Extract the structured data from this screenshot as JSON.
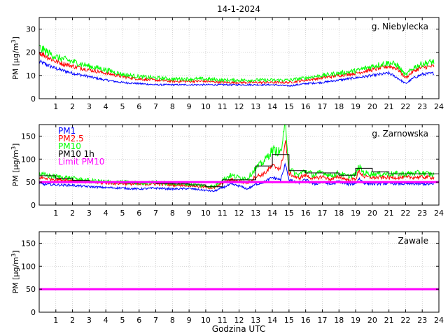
{
  "title": "14-1-2024",
  "xlabel": "Godzina UTC",
  "ylabel_prefix": "PM [μg/m",
  "ylabel_sup": "3",
  "ylabel_suffix": "]",
  "x_ticks": [
    1,
    2,
    3,
    4,
    5,
    6,
    7,
    8,
    9,
    10,
    11,
    12,
    13,
    14,
    15,
    16,
    17,
    18,
    19,
    20,
    21,
    22,
    23,
    24
  ],
  "colors": {
    "PM1": "#0000ff",
    "PM2.5": "#ff0000",
    "PM10": "#00ff00",
    "PM10 1h": "#000000",
    "Limit PM10": "#ff00ff",
    "grid": "#bfbfbf",
    "axis": "#000000"
  },
  "chart_data": [
    {
      "type": "line",
      "name": "g. Niebylecka",
      "xlim": [
        0,
        24
      ],
      "ylim": [
        0,
        35
      ],
      "y_ticks": [
        0,
        10,
        20,
        30
      ],
      "legend": null,
      "series": [
        {
          "name": "PM1",
          "x": [
            0,
            1,
            2,
            3,
            4,
            5,
            6,
            7,
            8,
            9,
            10,
            11,
            12,
            13,
            14,
            15,
            16,
            17,
            18,
            19,
            20,
            21,
            21.5,
            22,
            22.5,
            23,
            23.7
          ],
          "values": [
            16,
            13,
            11,
            9.5,
            8,
            7,
            6.5,
            6,
            6,
            6,
            6,
            6,
            6,
            6,
            6,
            5.5,
            6.5,
            7,
            8,
            9,
            10,
            11,
            9,
            6.5,
            9,
            10.5,
            11
          ]
        },
        {
          "name": "PM2.5",
          "x": [
            0,
            1,
            2,
            3,
            4,
            5,
            6,
            7,
            8,
            9,
            10,
            11,
            12,
            13,
            14,
            15,
            16,
            17,
            18,
            19,
            20,
            21,
            21.5,
            22,
            22.5,
            23,
            23.7
          ],
          "values": [
            20,
            16,
            14,
            12.5,
            11,
            9.5,
            8.5,
            8,
            7.5,
            7.5,
            7.5,
            7,
            7,
            7,
            7,
            7,
            8,
            9,
            10,
            11,
            12.5,
            14,
            13,
            9,
            12,
            13.5,
            14
          ]
        },
        {
          "name": "PM10",
          "x": [
            0,
            1,
            2,
            3,
            4,
            5,
            6,
            7,
            8,
            9,
            10,
            11,
            12,
            13,
            14,
            15,
            16,
            17,
            18,
            19,
            20,
            21,
            21.5,
            22,
            22.5,
            23,
            23.7
          ],
          "values": [
            22,
            18,
            16,
            14,
            12.5,
            10.5,
            9.5,
            9,
            8.5,
            8.5,
            8.5,
            8,
            8,
            8,
            8,
            8,
            9,
            10,
            11,
            12,
            14,
            15.5,
            14.5,
            10,
            13.5,
            15,
            16
          ]
        }
      ],
      "limit": null
    },
    {
      "type": "line",
      "name": "g. Zarnowska",
      "xlim": [
        0,
        24
      ],
      "ylim": [
        0,
        175
      ],
      "y_ticks": [
        0,
        50,
        100,
        150
      ],
      "legend": [
        "PM1",
        "PM2.5",
        "PM10",
        "PM10 1h",
        "Limit PM10"
      ],
      "series": [
        {
          "name": "PM1",
          "x": [
            0,
            1,
            2,
            3,
            4,
            5,
            6,
            7,
            8,
            9,
            10,
            10.5,
            11,
            11.5,
            12,
            12.5,
            13,
            13.5,
            14,
            14.5,
            14.8,
            15,
            15.5,
            16,
            16.5,
            17,
            17.5,
            18,
            18.5,
            19,
            19.2,
            19.5,
            20,
            21,
            22,
            23,
            23.7
          ],
          "values": [
            46,
            44,
            43,
            40,
            38,
            37,
            35,
            37,
            35,
            36,
            32,
            30,
            38,
            45,
            42,
            35,
            45,
            50,
            60,
            55,
            90,
            55,
            48,
            55,
            45,
            50,
            45,
            52,
            45,
            47,
            58,
            48,
            46,
            47,
            46,
            46,
            45
          ]
        },
        {
          "name": "PM2.5",
          "x": [
            0,
            1,
            2,
            3,
            4,
            5,
            6,
            7,
            8,
            9,
            10,
            10.5,
            11,
            11.5,
            12,
            12.5,
            13,
            13.5,
            14,
            14.5,
            14.8,
            15,
            15.5,
            16,
            16.5,
            17,
            17.5,
            18,
            18.5,
            19,
            19.2,
            19.5,
            20,
            21,
            22,
            23,
            23.7
          ],
          "values": [
            60,
            56,
            54,
            50,
            48,
            47,
            45,
            46,
            44,
            43,
            39,
            37,
            48,
            55,
            52,
            48,
            62,
            68,
            85,
            80,
            140,
            70,
            58,
            65,
            57,
            62,
            56,
            62,
            55,
            57,
            74,
            62,
            60,
            60,
            60,
            61,
            60
          ]
        },
        {
          "name": "PM10",
          "x": [
            0,
            1,
            2,
            3,
            4,
            5,
            6,
            7,
            8,
            9,
            10,
            10.5,
            11,
            11.5,
            12,
            12.5,
            13,
            13.5,
            14,
            14.5,
            14.8,
            15,
            15.5,
            16,
            16.5,
            17,
            17.5,
            18,
            18.5,
            19,
            19.2,
            19.5,
            20,
            21,
            22,
            23,
            23.7
          ],
          "values": [
            67,
            62,
            58,
            53,
            51,
            50,
            48,
            50,
            47,
            46,
            42,
            40,
            55,
            65,
            60,
            58,
            80,
            95,
            120,
            115,
            175,
            80,
            65,
            75,
            65,
            72,
            64,
            70,
            62,
            66,
            84,
            70,
            68,
            68,
            68,
            70,
            66
          ]
        },
        {
          "name": "PM10 1h",
          "x": [
            0,
            1,
            2,
            3,
            4,
            5,
            6,
            7,
            8,
            9,
            10,
            11,
            12,
            13,
            14,
            15,
            16,
            17,
            18,
            19,
            20,
            21,
            22,
            23,
            24
          ],
          "values": [
            64,
            58,
            54,
            51,
            50,
            48,
            49,
            47,
            46,
            44,
            40,
            55,
            55,
            85,
            110,
            75,
            70,
            70,
            65,
            80,
            72,
            68,
            68,
            68,
            68
          ],
          "step": true
        },
        {
          "name": "Limit PM10",
          "x": [
            0,
            24
          ],
          "values": [
            50,
            50
          ]
        }
      ],
      "limit": 50
    },
    {
      "type": "line",
      "name": "Zawale",
      "xlim": [
        0,
        24
      ],
      "ylim": [
        0,
        175
      ],
      "y_ticks": [
        0,
        50,
        100,
        150
      ],
      "legend": null,
      "series": [
        {
          "name": "Limit PM10",
          "x": [
            0,
            24
          ],
          "values": [
            50,
            50
          ]
        }
      ],
      "limit": 50
    }
  ]
}
